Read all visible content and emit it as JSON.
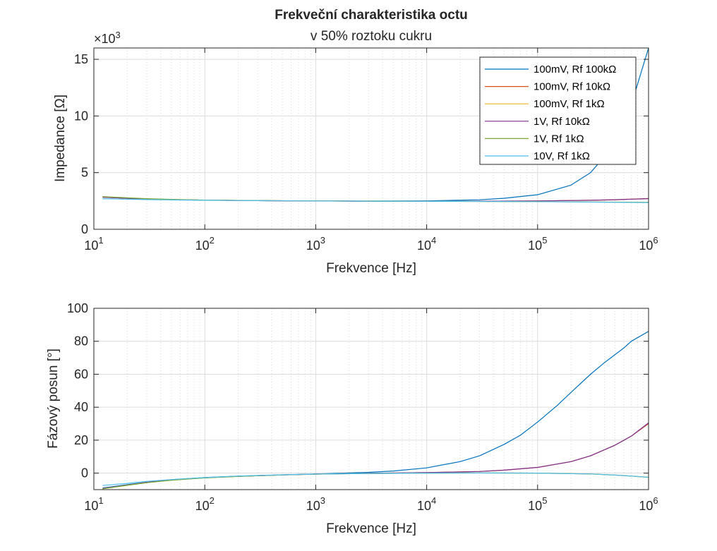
{
  "chart_data": [
    {
      "type": "line",
      "title": "Frekveční charakteristika octu",
      "subtitle": "v 50% roztoku cukru",
      "xlabel": "Frekvence [Hz]",
      "ylabel": "Impedance [Ω]",
      "x_scale": "log",
      "xlim": [
        10,
        1000000
      ],
      "ylim": [
        0,
        16000
      ],
      "y_exponent_label": "×10",
      "y_exponent": "3",
      "x_ticks": [
        10,
        100,
        1000,
        10000,
        100000,
        1000000
      ],
      "x_tick_base": "10",
      "x_tick_exponents": [
        "1",
        "2",
        "3",
        "4",
        "5",
        "6"
      ],
      "y_ticks": [
        0,
        5000,
        10000,
        15000
      ],
      "y_tick_labels": [
        "0",
        "5",
        "10",
        "15"
      ],
      "grid": true,
      "legend_position": "top-right",
      "series": [
        {
          "name": "100mV, Rf 100kΩ",
          "color": "#0072BD",
          "x": [
            12,
            20,
            30,
            50,
            100,
            300,
            1000,
            3000,
            10000,
            30000,
            50000,
            100000,
            200000,
            300000,
            500000,
            700000,
            1000000
          ],
          "values": [
            2850,
            2740,
            2680,
            2620,
            2570,
            2530,
            2500,
            2490,
            2510,
            2600,
            2740,
            3050,
            3900,
            5000,
            7500,
            11000,
            16000
          ]
        },
        {
          "name": "100mV, Rf 10kΩ",
          "color": "#D95319",
          "x": [
            12,
            20,
            30,
            50,
            100,
            300,
            1000,
            3000,
            10000,
            30000,
            100000,
            300000,
            500000,
            1000000
          ],
          "values": [
            2830,
            2740,
            2680,
            2620,
            2570,
            2530,
            2500,
            2480,
            2480,
            2480,
            2500,
            2560,
            2610,
            2720
          ]
        },
        {
          "name": "100mV, Rf 1kΩ",
          "color": "#EDB120",
          "x": [
            12,
            20,
            30,
            50,
            100,
            300,
            1000,
            3000,
            10000,
            100000,
            1000000
          ],
          "values": [
            2830,
            2740,
            2680,
            2620,
            2570,
            2530,
            2500,
            2480,
            2470,
            2440,
            2380
          ]
        },
        {
          "name": "1V, Rf 10kΩ",
          "color": "#7E2F8E",
          "x": [
            12,
            20,
            30,
            50,
            100,
            300,
            1000,
            3000,
            10000,
            30000,
            100000,
            300000,
            500000,
            1000000
          ],
          "values": [
            2830,
            2740,
            2680,
            2620,
            2570,
            2530,
            2500,
            2480,
            2480,
            2480,
            2500,
            2560,
            2610,
            2700
          ]
        },
        {
          "name": "1V, Rf 1kΩ",
          "color": "#77AC30",
          "x": [
            12,
            20,
            30,
            50,
            100,
            300,
            1000,
            3000,
            10000,
            100000,
            1000000
          ],
          "values": [
            2880,
            2780,
            2700,
            2640,
            2580,
            2540,
            2510,
            2490,
            2470,
            2440,
            2380
          ]
        },
        {
          "name": "10V, Rf 1kΩ",
          "color": "#4DBEEE",
          "x": [
            12,
            20,
            30,
            50,
            100,
            300,
            1000,
            3000,
            10000,
            100000,
            1000000
          ],
          "values": [
            2700,
            2650,
            2620,
            2590,
            2560,
            2530,
            2500,
            2480,
            2470,
            2440,
            2360
          ]
        }
      ]
    },
    {
      "type": "line",
      "xlabel": "Frekvence [Hz]",
      "ylabel": "Fázový posun [°]",
      "x_scale": "log",
      "xlim": [
        10,
        1000000
      ],
      "ylim": [
        -10,
        100
      ],
      "x_ticks": [
        10,
        100,
        1000,
        10000,
        100000,
        1000000
      ],
      "x_tick_base": "10",
      "x_tick_exponents": [
        "1",
        "2",
        "3",
        "4",
        "5",
        "6"
      ],
      "y_ticks": [
        0,
        20,
        40,
        60,
        80,
        100
      ],
      "y_tick_labels": [
        "0",
        "20",
        "40",
        "60",
        "80",
        "100"
      ],
      "grid": true,
      "series": [
        {
          "name": "100mV, Rf 100kΩ",
          "color": "#0072BD",
          "x": [
            12,
            20,
            30,
            50,
            100,
            200,
            500,
            1000,
            3000,
            5000,
            10000,
            20000,
            30000,
            50000,
            70000,
            100000,
            150000,
            200000,
            300000,
            400000,
            600000,
            700000,
            1000000
          ],
          "values": [
            -9,
            -7,
            -5.5,
            -4,
            -2.7,
            -1.8,
            -1,
            -0.5,
            0.5,
            1.3,
            3.2,
            7,
            10.5,
            17.5,
            23,
            31,
            41,
            49,
            60,
            67,
            76,
            80,
            86
          ]
        },
        {
          "name": "100mV, Rf 10kΩ",
          "color": "#D95319",
          "x": [
            12,
            20,
            30,
            50,
            100,
            200,
            500,
            1000,
            3000,
            10000,
            30000,
            50000,
            100000,
            200000,
            300000,
            500000,
            700000,
            1000000
          ],
          "values": [
            -9.5,
            -7.3,
            -5.7,
            -4.2,
            -2.8,
            -1.9,
            -1.1,
            -0.6,
            -0.1,
            0.3,
            1,
            1.8,
            3.5,
            7,
            10.5,
            17,
            22.5,
            30
          ]
        },
        {
          "name": "100mV, Rf 1kΩ",
          "color": "#EDB120",
          "x": [
            12,
            20,
            30,
            50,
            100,
            200,
            500,
            1000,
            3000,
            10000,
            30000,
            100000,
            300000,
            500000,
            700000,
            1000000
          ],
          "values": [
            -9.5,
            -7.3,
            -5.7,
            -4.2,
            -2.8,
            -1.9,
            -1.1,
            -0.6,
            -0.2,
            0,
            0.1,
            0,
            -0.5,
            -1.2,
            -1.8,
            -2.5
          ]
        },
        {
          "name": "1V, Rf 10kΩ",
          "color": "#7E2F8E",
          "x": [
            12,
            20,
            30,
            50,
            100,
            200,
            500,
            1000,
            3000,
            10000,
            30000,
            50000,
            100000,
            200000,
            300000,
            500000,
            700000,
            1000000
          ],
          "values": [
            -9.3,
            -7.2,
            -5.6,
            -4.1,
            -2.8,
            -1.9,
            -1.1,
            -0.6,
            -0.1,
            0.3,
            1,
            1.8,
            3.5,
            7,
            10.5,
            17,
            22.5,
            30.5
          ]
        },
        {
          "name": "1V, Rf 1kΩ",
          "color": "#77AC30",
          "x": [
            12,
            20,
            30,
            50,
            100,
            200,
            500,
            1000,
            3000,
            10000,
            30000,
            100000,
            300000,
            500000,
            700000,
            1000000
          ],
          "values": [
            -9.5,
            -7.4,
            -5.8,
            -4.3,
            -2.9,
            -2,
            -1.1,
            -0.6,
            -0.2,
            0,
            0.1,
            0,
            -0.5,
            -1.2,
            -1.8,
            -2.5
          ]
        },
        {
          "name": "10V, Rf 1kΩ",
          "color": "#4DBEEE",
          "x": [
            12,
            20,
            30,
            50,
            100,
            200,
            500,
            1000,
            3000,
            10000,
            30000,
            100000,
            300000,
            500000,
            700000,
            1000000
          ],
          "values": [
            -7.5,
            -6.2,
            -5,
            -3.9,
            -2.7,
            -1.8,
            -1,
            -0.6,
            -0.2,
            0,
            0.1,
            0,
            -0.5,
            -1.2,
            -1.8,
            -2.5
          ]
        }
      ]
    }
  ]
}
